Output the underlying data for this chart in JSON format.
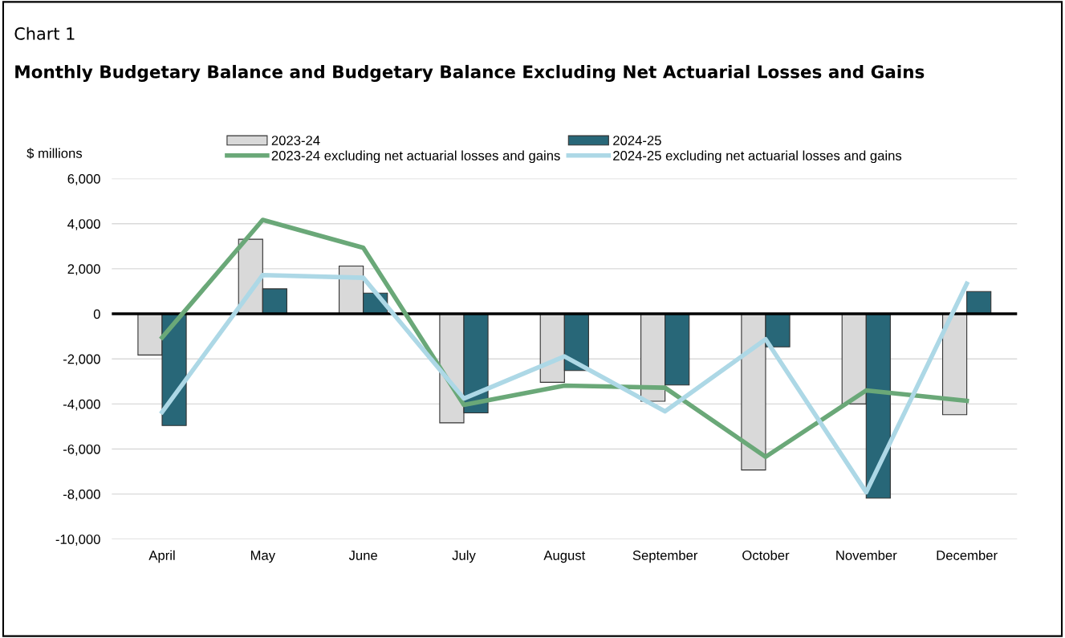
{
  "chart_data": {
    "type": "bar",
    "title": "Monthly Budgetary Balance and Budgetary Balance Excluding Net Actuarial Losses and Gains",
    "annotations": [
      "Chart 1"
    ],
    "ylabel": "$ millions",
    "categories": [
      "April",
      "May",
      "June",
      "July",
      "August",
      "September",
      "October",
      "November",
      "December"
    ],
    "series": [
      {
        "name": "2023-24",
        "color": "#d9d9d9",
        "values": [
          -1830,
          3310,
          2120,
          -4840,
          -3040,
          -3880,
          -6930,
          -4000,
          -4480
        ]
      },
      {
        "name": "2024-25",
        "color": "#286778",
        "values": [
          -4960,
          1110,
          920,
          -4400,
          -2520,
          -3160,
          -1470,
          -8180,
          990
        ]
      },
      {
        "name": "2023-24 excluding net actuarial losses and gains",
        "type": "line",
        "color": "#6aa878",
        "values": [
          -1050,
          4170,
          2930,
          -4040,
          -3190,
          -3280,
          -6350,
          -3400,
          -3860
        ]
      },
      {
        "name": "2024-25 excluding net actuarial losses and gains",
        "type": "line",
        "color": "#add8e6",
        "values": [
          -4360,
          1720,
          1600,
          -3760,
          -1890,
          -4330,
          -1130,
          -7920,
          1340
        ]
      }
    ],
    "ylim": [
      -10000,
      6000
    ],
    "yticks": [
      {
        "value": -10000,
        "label": "-10,000"
      },
      {
        "value": -8000,
        "label": "-8,000"
      },
      {
        "value": -6000,
        "label": "-6,000"
      },
      {
        "value": -4000,
        "label": "-4,000"
      },
      {
        "value": -2000,
        "label": "-2,000"
      },
      0,
      {
        "value": 2000,
        "label": "2,000"
      },
      {
        "value": 4000,
        "label": "4,000"
      },
      {
        "value": 6000,
        "label": "6,000"
      }
    ],
    "grid": "y",
    "legend": "top",
    "marker": "none",
    "line_style": "solid"
  }
}
